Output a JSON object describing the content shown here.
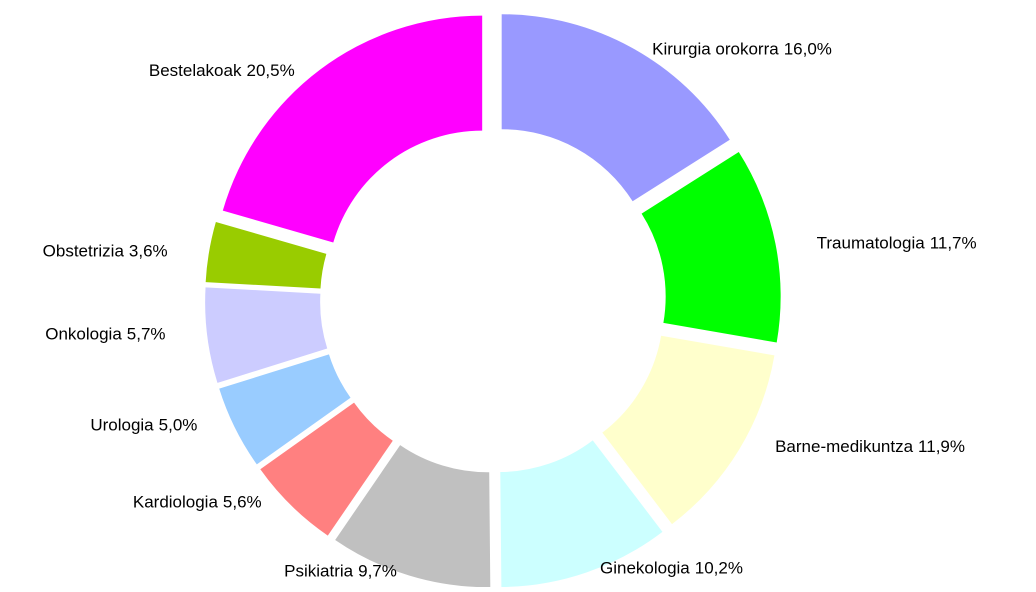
{
  "chart_data": {
    "type": "donut",
    "labels": [
      "Kirurgia orokorra",
      "Traumatologia",
      "Barne-medikuntza",
      "Ginekologia",
      "Psikiatria",
      "Kardiologia",
      "Urologia",
      "Onkologia",
      "Obstetrizia",
      "Bestelakoak"
    ],
    "values": [
      16.0,
      11.7,
      11.9,
      10.2,
      9.7,
      5.6,
      5.0,
      5.7,
      3.6,
      20.5
    ],
    "value_labels": [
      "16,0%",
      "11,7%",
      "11,9%",
      "10,2%",
      "9,7%",
      "5,6%",
      "5,0%",
      "5,7%",
      "3,6%",
      "20,5%"
    ],
    "colors": [
      "#9999ff",
      "#00ff00",
      "#ffffcc",
      "#ccffff",
      "#c0c0c0",
      "#ff8080",
      "#99ccff",
      "#ccccff",
      "#99cc00",
      "#ff00ff"
    ]
  }
}
